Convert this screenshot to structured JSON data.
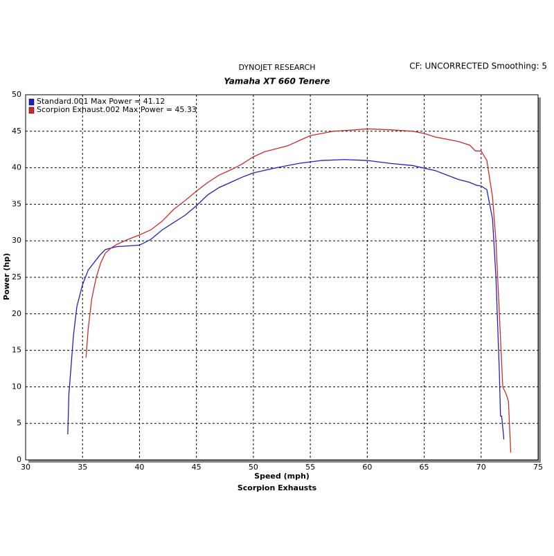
{
  "chart_data": {
    "type": "line",
    "header": "DYNOJET RESEARCH",
    "title": "Yamaha XT 660 Tenere",
    "note": "CF: UNCORRECTED  Smoothing: 5",
    "xlabel": "Speed (mph)",
    "ylabel": "Power (hp)",
    "footer": "Scorpion Exhausts",
    "xlim": [
      30,
      75
    ],
    "xticks": [
      30,
      35,
      40,
      45,
      50,
      55,
      60,
      65,
      70,
      75
    ],
    "ylim": [
      0,
      50
    ],
    "yticks": [
      0,
      5,
      10,
      15,
      20,
      25,
      30,
      35,
      40,
      45,
      50
    ],
    "grid": true,
    "legend": "top-left",
    "series": [
      {
        "name": "Standard.001 Max Power = 41.12",
        "color": "#1f1fbf",
        "x": [
          33.7,
          33.8,
          34.0,
          34.2,
          34.5,
          35,
          35.5,
          36,
          36.5,
          37,
          38,
          39,
          40,
          41,
          42,
          43,
          44,
          45,
          46,
          47,
          48,
          49,
          50,
          52,
          54,
          56,
          58,
          60,
          62,
          64,
          66,
          68,
          69,
          69.6,
          70,
          70.5,
          71,
          71.3,
          71.6,
          71.7,
          71.8,
          72
        ],
        "values": [
          3.5,
          9,
          13,
          17,
          21,
          24,
          26,
          27,
          28,
          28.8,
          29.2,
          29.3,
          29.4,
          30.2,
          31.5,
          32.5,
          33.5,
          34.8,
          36.3,
          37.3,
          38.0,
          38.7,
          39.3,
          40.0,
          40.6,
          41.0,
          41.12,
          41.0,
          40.6,
          40.3,
          39.6,
          38.4,
          38.0,
          37.6,
          37.5,
          37.0,
          33,
          25,
          12,
          6,
          6,
          2.8
        ]
      },
      {
        "name": "Scorpion Exhaust.002 Max Power = 45.33",
        "color": "#cc2a2a",
        "x": [
          35.3,
          35.5,
          35.8,
          36.2,
          36.6,
          37,
          37.5,
          38,
          39,
          40,
          41,
          42,
          43,
          44,
          45,
          46,
          47,
          48,
          49,
          50,
          51,
          52,
          53,
          54,
          55,
          56,
          57,
          58,
          59,
          60,
          62,
          64,
          65,
          66,
          67,
          68,
          69,
          69.5,
          70,
          70.5,
          71,
          71.3,
          71.6,
          71.9,
          72.2,
          72.4,
          72.6
        ],
        "values": [
          14,
          18,
          22,
          25,
          27,
          28.3,
          29,
          29.5,
          30.2,
          30.8,
          31.5,
          32.7,
          34.3,
          35.5,
          36.8,
          38.0,
          39.0,
          39.7,
          40.5,
          41.5,
          42.2,
          42.6,
          43.0,
          43.7,
          44.4,
          44.7,
          45.0,
          45.1,
          45.2,
          45.33,
          45.2,
          45.0,
          44.7,
          44.2,
          43.9,
          43.6,
          43.1,
          42.3,
          42.3,
          41,
          36,
          30,
          20,
          10,
          9,
          8,
          1
        ]
      }
    ]
  }
}
